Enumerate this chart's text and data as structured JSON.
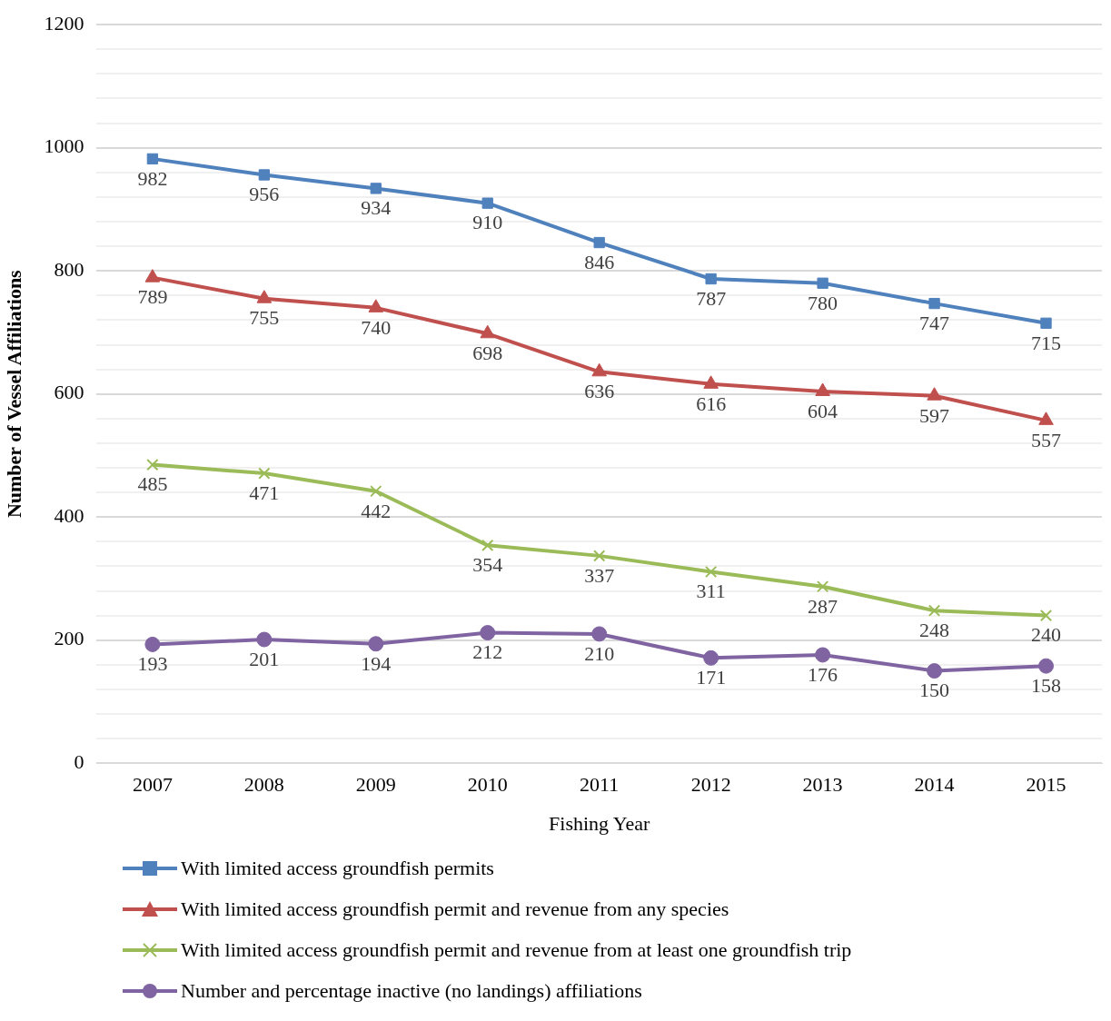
{
  "chart_data": {
    "type": "line",
    "xlabel": "Fishing Year",
    "ylabel": "Number of Vessel Affiliations",
    "categories": [
      "2007",
      "2008",
      "2009",
      "2010",
      "2011",
      "2012",
      "2013",
      "2014",
      "2015"
    ],
    "series": [
      {
        "name": "With limited access groundfish permits",
        "color": "#4f81bd",
        "marker": "square",
        "values": [
          982,
          956,
          934,
          910,
          846,
          787,
          780,
          747,
          715
        ]
      },
      {
        "name": "With limited access groundfish permit and revenue from any species",
        "color": "#c0504d",
        "marker": "triangle",
        "values": [
          789,
          755,
          740,
          698,
          636,
          616,
          604,
          597,
          557
        ]
      },
      {
        "name": "With limited access groundfish permit and revenue from at least one groundfish trip",
        "color": "#9bbb59",
        "marker": "cross",
        "values": [
          485,
          471,
          442,
          354,
          337,
          311,
          287,
          248,
          240
        ]
      },
      {
        "name": "Number and percentage inactive (no landings) affiliations",
        "color": "#8064a2",
        "marker": "circle",
        "values": [
          193,
          201,
          194,
          212,
          210,
          171,
          176,
          150,
          158
        ]
      }
    ],
    "ylim": [
      0,
      1200
    ],
    "yticks": [
      0,
      {
        "value": 40,
        "label": null
      },
      {
        "value": 80,
        "label": null
      },
      {
        "value": 120,
        "label": null
      },
      {
        "value": 160,
        "label": null
      },
      200,
      {
        "value": 240,
        "label": null
      },
      {
        "value": 280,
        "label": null
      },
      {
        "value": 320,
        "label": null
      },
      {
        "value": 360,
        "label": null
      },
      400,
      {
        "value": 440,
        "label": null
      },
      {
        "value": 480,
        "label": null
      },
      {
        "value": 520,
        "label": null
      },
      {
        "value": 560,
        "label": null
      },
      600,
      {
        "value": 640,
        "label": null
      },
      {
        "value": 680,
        "label": null
      },
      {
        "value": 720,
        "label": null
      },
      {
        "value": 760,
        "label": null
      },
      800,
      {
        "value": 840,
        "label": null
      },
      {
        "value": 880,
        "label": null
      },
      {
        "value": 920,
        "label": null
      },
      {
        "value": 960,
        "label": null
      },
      1000,
      {
        "value": 1040,
        "label": null
      },
      {
        "value": 1080,
        "label": null
      },
      {
        "value": 1120,
        "label": null
      },
      {
        "value": 1160,
        "label": null
      },
      1200
    ],
    "grid": "y",
    "legend": "bottom",
    "data_labels": true,
    "line_style": "solid"
  }
}
